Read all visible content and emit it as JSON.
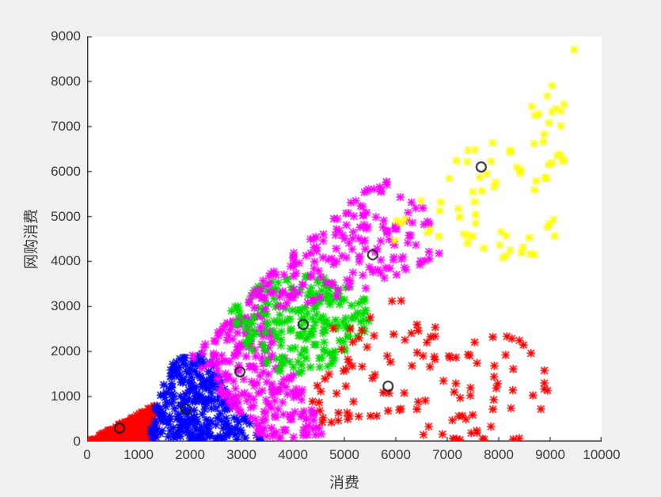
{
  "figure": {
    "background": "#f0f0f0",
    "plot_background": "#ffffff",
    "axis_color": "#2a2a2a",
    "tick_color": "#2a2a2a",
    "tick_label_color": "#3a3a3a",
    "label_color": "#3a3a3a"
  },
  "chart_data": {
    "type": "scatter",
    "title": "",
    "xlabel": "消费",
    "ylabel": "网购消费",
    "xlim": [
      0,
      10000
    ],
    "ylim": [
      0,
      9000
    ],
    "x_ticks": [
      0,
      1000,
      2000,
      3000,
      4000,
      5000,
      6000,
      7000,
      8000,
      9000,
      10000
    ],
    "y_ticks": [
      0,
      1000,
      2000,
      3000,
      4000,
      5000,
      6000,
      7000,
      8000,
      9000
    ],
    "grid": false,
    "legend": null,
    "marker": "asterisk",
    "box": false,
    "tick_direction": "in",
    "seed": 20,
    "series": [
      {
        "name": "cluster-1-red-origin",
        "color": "#ff0000",
        "count": 320,
        "region": [
          [
            0,
            0
          ],
          [
            1330,
            0
          ],
          [
            1330,
            820
          ],
          [
            60,
            40
          ]
        ]
      },
      {
        "name": "cluster-2-blue",
        "color": "#0000ff",
        "count": 270,
        "region": [
          [
            1200,
            30
          ],
          [
            3450,
            30
          ],
          [
            2900,
            800
          ],
          [
            2300,
            2000
          ],
          [
            1650,
            1800
          ],
          [
            1250,
            600
          ]
        ]
      },
      {
        "name": "cluster-3-magenta-lower",
        "color": "#ff00ff",
        "count": 230,
        "region": [
          [
            1950,
            1900
          ],
          [
            2700,
            900
          ],
          [
            3350,
            80
          ],
          [
            4650,
            60
          ],
          [
            4150,
            1350
          ],
          [
            3350,
            2900
          ],
          [
            2400,
            2500
          ]
        ]
      },
      {
        "name": "cluster-4-green",
        "color": "#00dd00",
        "count": 215,
        "region": [
          [
            2750,
            2950
          ],
          [
            3200,
            1900
          ],
          [
            3900,
            1450
          ],
          [
            4800,
            1700
          ],
          [
            5600,
            2600
          ],
          [
            5300,
            3400
          ],
          [
            4300,
            3750
          ],
          [
            3300,
            3500
          ]
        ]
      },
      {
        "name": "cluster-5-magenta-upper",
        "color": "#ff00ff",
        "count": 180,
        "region": [
          [
            2950,
            2900
          ],
          [
            4100,
            2950
          ],
          [
            5500,
            3350
          ],
          [
            6850,
            4150
          ],
          [
            6550,
            5250
          ],
          [
            5750,
            5900
          ],
          [
            5100,
            5300
          ],
          [
            4300,
            4500
          ],
          [
            3400,
            3600
          ]
        ]
      },
      {
        "name": "cluster-6-red-right",
        "color": "#ff0000",
        "count": 120,
        "region": [
          [
            4350,
            40
          ],
          [
            9100,
            40
          ],
          [
            8900,
            2300
          ],
          [
            7000,
            2400
          ],
          [
            5700,
            3550
          ],
          [
            4700,
            2500
          ],
          [
            4250,
            900
          ]
        ]
      },
      {
        "name": "cluster-7-yellow",
        "color": "#ffff00",
        "count": 78,
        "region": [
          [
            6000,
            4200
          ],
          [
            7600,
            3950
          ],
          [
            9400,
            4250
          ],
          [
            9500,
            8950
          ],
          [
            8800,
            7600
          ],
          [
            7400,
            6500
          ],
          [
            6300,
            5300
          ],
          [
            5750,
            4650
          ]
        ]
      }
    ],
    "centroids": {
      "marker": "circle",
      "color": "#1c1c1c",
      "points": [
        [
          630,
          300
        ],
        [
          1920,
          720
        ],
        [
          2970,
          1550
        ],
        [
          4200,
          2600
        ],
        [
          5550,
          4150
        ],
        [
          5850,
          1230
        ],
        [
          7660,
          6100
        ]
      ]
    }
  }
}
